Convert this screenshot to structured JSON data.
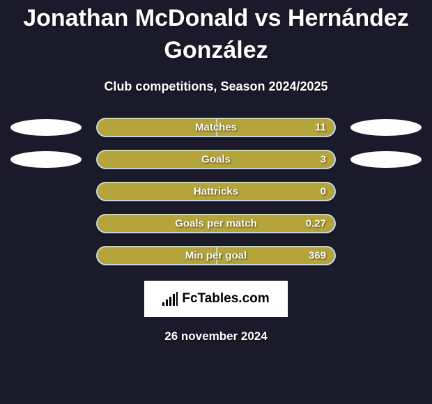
{
  "header": {
    "title": "Jonathan McDonald vs Hernández González",
    "subtitle": "Club competitions, Season 2024/2025"
  },
  "stats": [
    {
      "label": "Matches",
      "value": "11",
      "has_ovals": true,
      "split_bar": true
    },
    {
      "label": "Goals",
      "value": "3",
      "has_ovals": true,
      "split_bar": false
    },
    {
      "label": "Hattricks",
      "value": "0",
      "has_ovals": false,
      "split_bar": false
    },
    {
      "label": "Goals per match",
      "value": "0.27",
      "has_ovals": false,
      "split_bar": false
    },
    {
      "label": "Min per goal",
      "value": "369",
      "has_ovals": false,
      "split_bar": true
    }
  ],
  "footer": {
    "logo_text": "FcTables.com",
    "date": "26 november 2024"
  },
  "colors": {
    "background": "#1a1a2a",
    "bar_fill": "#b4a43a",
    "bar_border": "#bfd5e6",
    "text": "#ffffff",
    "oval": "#ffffff",
    "logo_bg": "#ffffff",
    "logo_fg": "#000000"
  }
}
